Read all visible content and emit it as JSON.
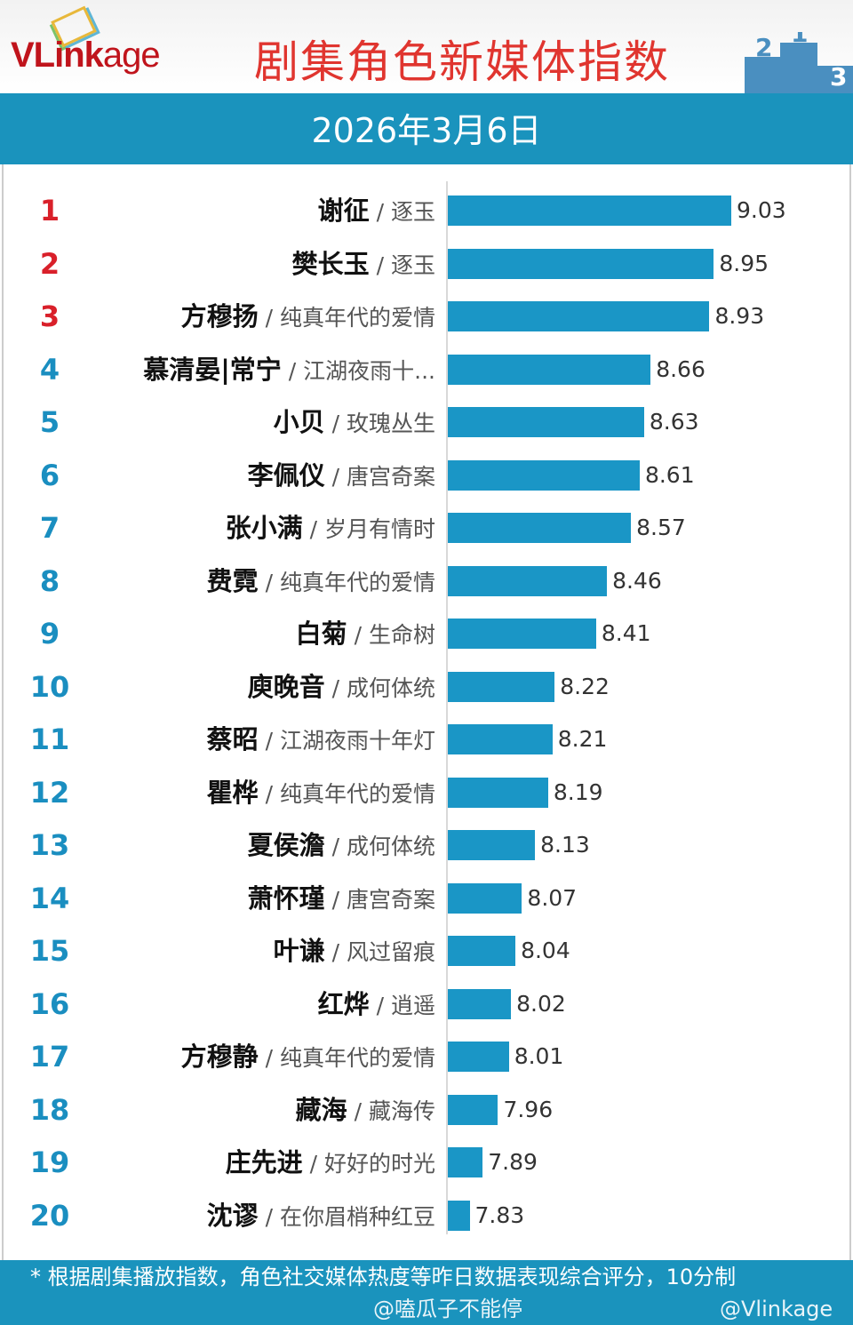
{
  "header": {
    "logo": "VLinkage",
    "logo_part1": "VLink",
    "logo_part2": "age",
    "title": "剧集角色新媒体指数",
    "date": "2026年3月6日",
    "podium_numbers": [
      "2",
      "1",
      "3"
    ]
  },
  "colors": {
    "top3_rank": "#d9202a",
    "rank": "#1a8ec0",
    "bar": "#1a96c6",
    "band": "#1a93bd",
    "title": "#e0352f"
  },
  "chart_data": {
    "type": "bar",
    "orientation": "horizontal",
    "title": "剧集角色新媒体指数",
    "categories": [
      {
        "rank": "1",
        "name": "谢征",
        "show": "逐玉"
      },
      {
        "rank": "2",
        "name": "樊长玉",
        "show": "逐玉"
      },
      {
        "rank": "3",
        "name": "方穆扬",
        "show": "纯真年代的爱情"
      },
      {
        "rank": "4",
        "name": "慕清晏|常宁",
        "show": "江湖夜雨十..."
      },
      {
        "rank": "5",
        "name": "小贝",
        "show": "玫瑰丛生"
      },
      {
        "rank": "6",
        "name": "李佩仪",
        "show": "唐宫奇案"
      },
      {
        "rank": "7",
        "name": "张小满",
        "show": "岁月有情时"
      },
      {
        "rank": "8",
        "name": "费霓",
        "show": "纯真年代的爱情"
      },
      {
        "rank": "9",
        "name": "白菊",
        "show": "生命树"
      },
      {
        "rank": "10",
        "name": "庾晚音",
        "show": "成何体统"
      },
      {
        "rank": "11",
        "name": "蔡昭",
        "show": "江湖夜雨十年灯"
      },
      {
        "rank": "12",
        "name": "瞿桦",
        "show": "纯真年代的爱情"
      },
      {
        "rank": "13",
        "name": "夏侯澹",
        "show": "成何体统"
      },
      {
        "rank": "14",
        "name": "萧怀瑾",
        "show": "唐宫奇案"
      },
      {
        "rank": "15",
        "name": "叶谦",
        "show": "风过留痕"
      },
      {
        "rank": "16",
        "name": "红烨",
        "show": "逍遥"
      },
      {
        "rank": "17",
        "name": "方穆静",
        "show": "纯真年代的爱情"
      },
      {
        "rank": "18",
        "name": "藏海",
        "show": "藏海传"
      },
      {
        "rank": "19",
        "name": "庄先进",
        "show": "好好的时光"
      },
      {
        "rank": "20",
        "name": "沈谬",
        "show": "在你眉梢种红豆"
      }
    ],
    "values": [
      9.03,
      8.95,
      8.93,
      8.66,
      8.63,
      8.61,
      8.57,
      8.46,
      8.41,
      8.22,
      8.21,
      8.19,
      8.13,
      8.07,
      8.04,
      8.02,
      8.01,
      7.96,
      7.89,
      7.83
    ],
    "separator": "/"
  },
  "footer": {
    "note": "* 根据剧集播放指数，角色社交媒体热度等昨日数据表现综合评分，10分制",
    "watermark1": "@嗑瓜子不能停",
    "watermark2": "@Vlinkage"
  }
}
